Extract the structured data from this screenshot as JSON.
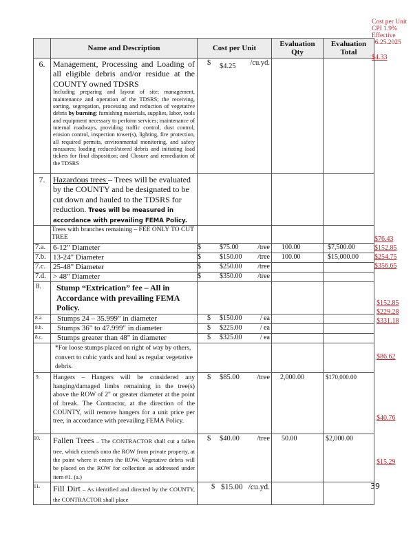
{
  "annotation_header": [
    "Cost per Unit",
    "CPI 1.9%",
    "Effective",
    "06.25.2025"
  ],
  "table": {
    "headers": {
      "blank": "",
      "name": "Name and Description",
      "cost": "Cost per Unit",
      "qty": "Evaluation Qty",
      "total": "Evaluation Total"
    },
    "rows": [
      {
        "no": "6.",
        "title": "Management, Processing and Loading of all eligible debris and/or residue at the COUNTY owned TDSRS",
        "detail_a": "Including preparing and layout of site; management, maintenance and operation of the TDSRS; the receiving, sorting, segregation, processing and reduction of vegetative debris ",
        "detail_bold": "by burning",
        "detail_b": "; furnishing materials, supplies, labor, tools and equipment necessary to perform services; maintenance of internal roadways, providing traffic control, dust control, erosion control, inspection tower(s), lighting, fire protection, all required permits, environmental monitoring, and safety measures; loading reduced/stored debris and initiating load tickets for final disposition; and Closure and remediation of the TDSRS",
        "dollar": "$",
        "amount": "$4.25",
        "unit": "/cu.yd.",
        "qty": "",
        "total": "",
        "cpi": "$4.33"
      },
      {
        "no": "7.",
        "title_u": "Hazardous trees ",
        "title": "– Trees will be evaluated by the COUNTY and be designated to be cut down and hauled to the TDSRS for reduction. ",
        "title_bold": "Trees will be measured in accordance with prevailing FEMA Policy."
      },
      {
        "no": "",
        "title": "Trees with branches remaining – FEE ONLY TO CUT TREE"
      },
      {
        "no": "7.a.",
        "title": "6-12\" Diameter",
        "dollar": "$",
        "amount": "$75.00",
        "unit": "/tree",
        "qty": "100.00",
        "total": "$7,500.00",
        "cpi": "$76.43"
      },
      {
        "no": "7.b.",
        "title": "13-24\" Diameter",
        "dollar": "$",
        "amount": "$150.00",
        "unit": "/tree",
        "qty": "100.00",
        "total": "$15,000.00",
        "cpi": "$152.85"
      },
      {
        "no": "7.c.",
        "title": "25-48\" Diameter",
        "dollar": "$",
        "amount": "$250.00",
        "unit": "/tree",
        "qty": "",
        "total": "",
        "cpi": "$254.75"
      },
      {
        "no": "7.d.",
        "title": "> 48\" Diameter",
        "dollar": "$",
        "amount": "$350.00",
        "unit": "/tree",
        "qty": "",
        "total": "",
        "cpi": "$356.65"
      },
      {
        "no": "8.",
        "title": "Stump “Extrication” fee – All in Accordance with prevailing FEMA Policy."
      },
      {
        "no": "8.a.",
        "title": "Stumps 24 – 35.999\" in diameter",
        "dollar": "$",
        "amount": "$150.00",
        "unit": "/ ea",
        "cpi": "$152.85"
      },
      {
        "no": "8.b.",
        "title": "Stumps 36\" to 47.999\" in diameter",
        "dollar": "$",
        "amount": "$225.00",
        "unit": "/ ea",
        "cpi": "$229.28"
      },
      {
        "no": "8.c.",
        "title": "Stumps greater than 48\" in diameter",
        "dollar": "$",
        "amount": "$325.00",
        "unit": "/ ea",
        "cpi": "$331.18"
      },
      {
        "no": "",
        "title": "*For loose stumps placed on right of way by others, convert to cubic yards and haul as regular vegetative debris."
      },
      {
        "no": "9.",
        "title": "Hangers – Hangers will be considered any hanging/damaged limbs remaining in the tree(s) above the ROW of 2\" or greater diameter at the point of break. The Contractor, at the direction of the COUNTY, will remove hangers for a unit price per tree, in accordance with prevailing FEMA Policy.",
        "dollar": "$",
        "amount": "$85.00",
        "unit": "/tree",
        "qty": "2,000.00",
        "total": "$170,000.00",
        "cpi": "$86.62"
      },
      {
        "no": "10.",
        "title_big": "Fallen Trees",
        "title": " – The CONTRACTOR shall cut a fallen tree, which extends onto the ROW from private property, at the point where it enters the ROW. Vegetative debris will be placed on the ROW for collection as addressed under item #1. (a.)",
        "dollar": "$",
        "amount": "$40.00",
        "unit": "/tree",
        "qty": "50.00",
        "total": "$2,000.00",
        "cpi": "$40.76"
      },
      {
        "no": "11.",
        "title_big": "Fill Dirt",
        "title": " – As identified and directed by the COUNTY, the CONTRACTOR shall place",
        "dollar": "$",
        "amount": "$15.00",
        "unit": "/cu.yd.",
        "qty": "",
        "total": "",
        "cpi": "$15.29"
      }
    ]
  },
  "page_number": "39",
  "colors": {
    "annotation_red": "#c0202a",
    "header_bg": "#ececec"
  }
}
